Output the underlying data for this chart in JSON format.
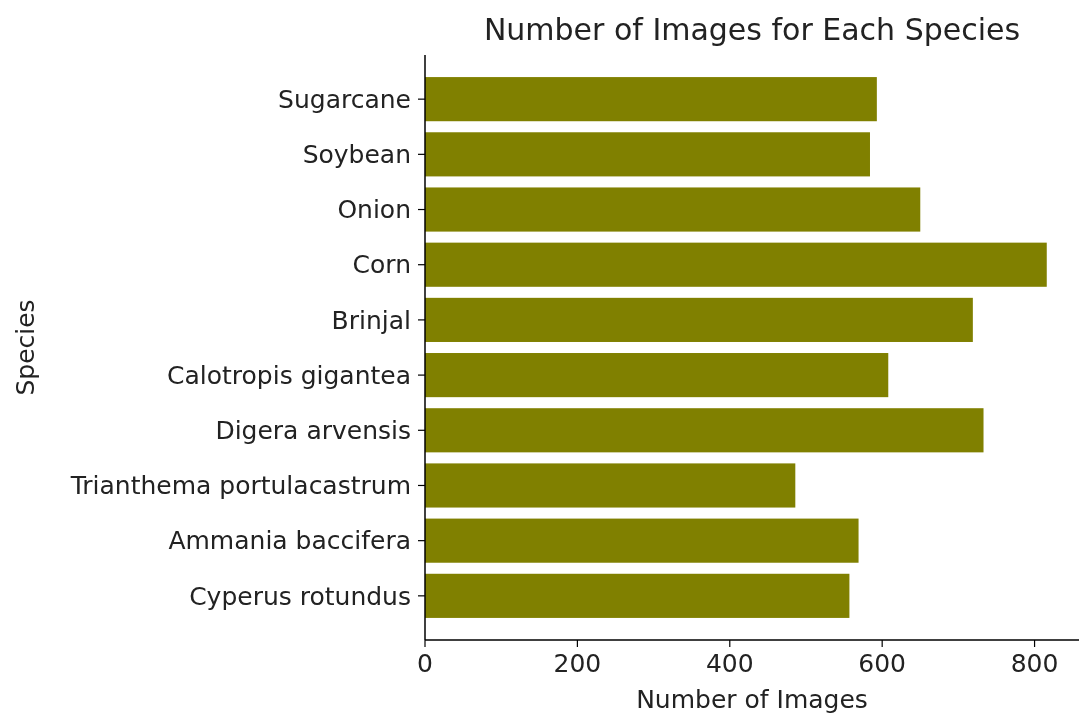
{
  "chart_data": {
    "type": "bar",
    "orientation": "horizontal",
    "title": "Number of Images for Each Species",
    "xlabel": "Number of Images",
    "ylabel": "Species",
    "categories": [
      "Sugarcane",
      "Soybean",
      "Onion",
      "Corn",
      "Brinjal",
      "Calotropis gigantea",
      "Digera arvensis",
      "Trianthema portulacastrum",
      "Ammania baccifera",
      "Cyperus rotundus"
    ],
    "values": [
      593,
      584,
      650,
      816,
      719,
      608,
      733,
      486,
      569,
      557
    ],
    "color": "#808000",
    "xlim": [
      0,
      857
    ],
    "xticks": [
      0,
      200,
      400,
      600,
      800
    ],
    "grid": false
  }
}
